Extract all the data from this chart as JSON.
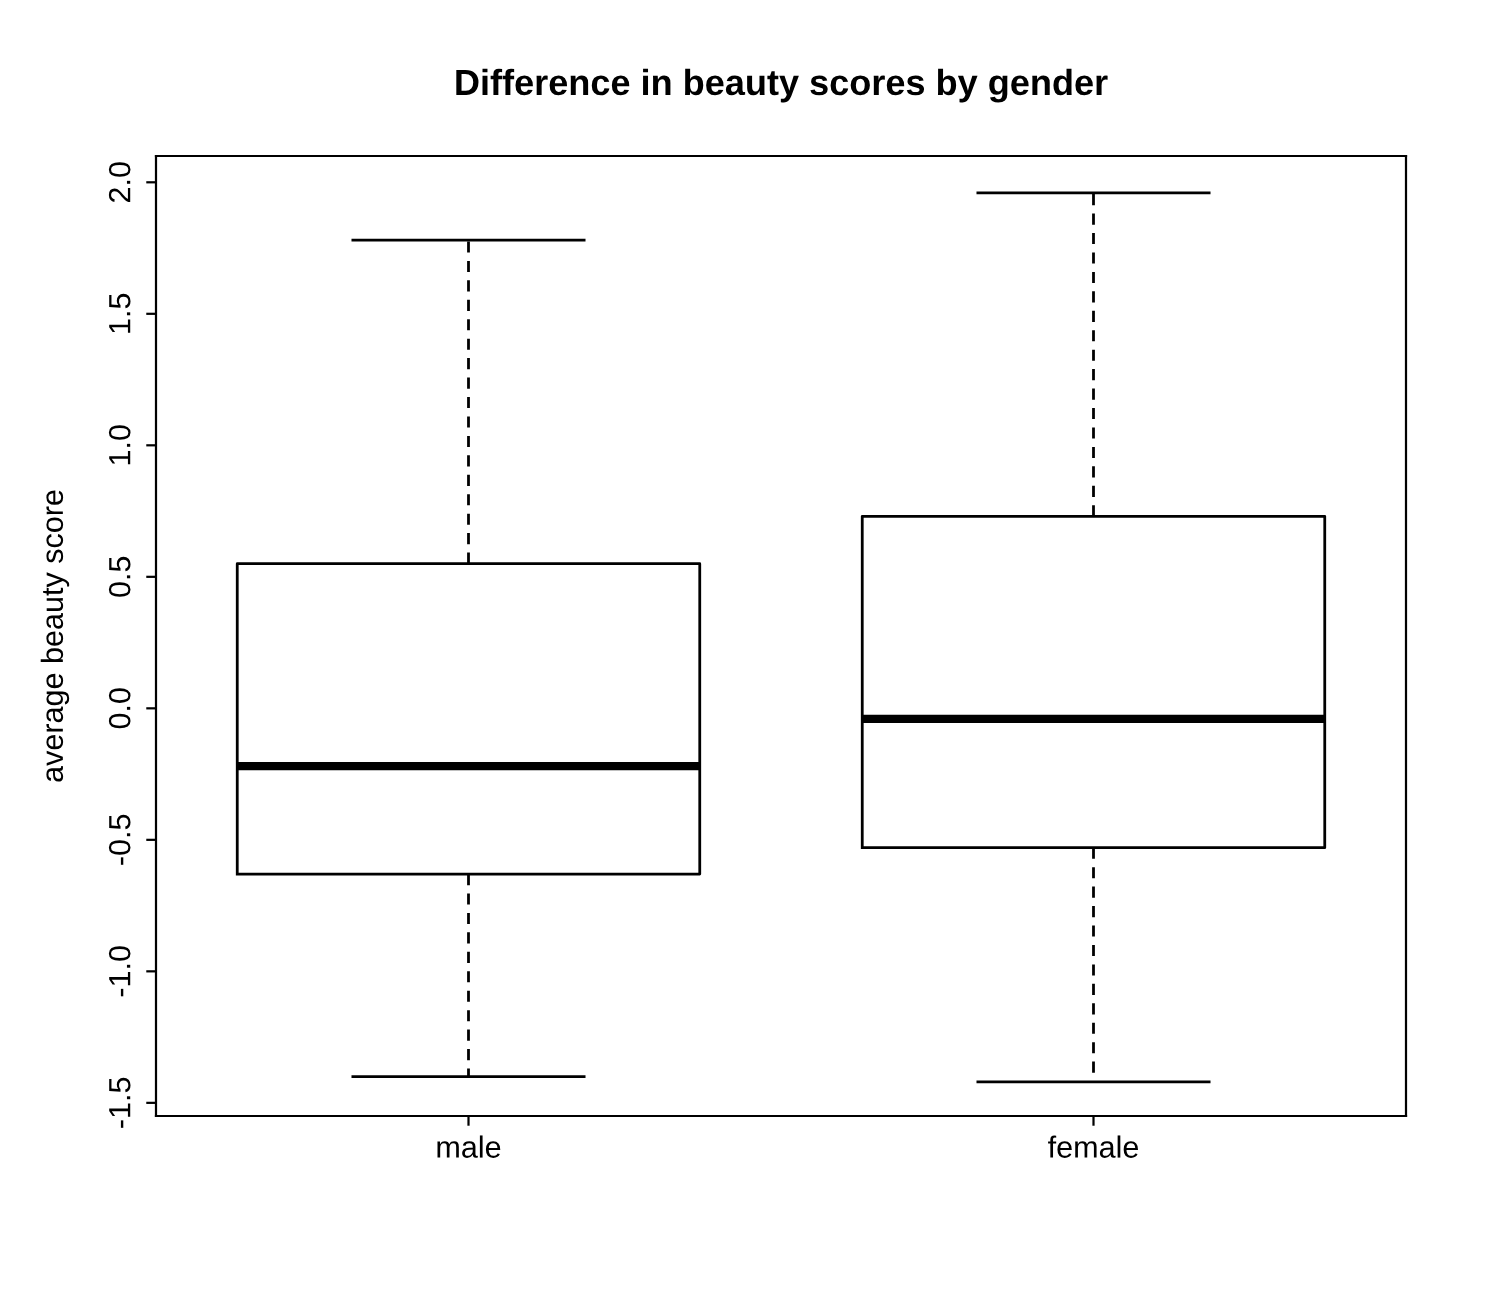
{
  "chart_data": {
    "type": "box",
    "title": "Difference in beauty scores by gender",
    "ylabel": "average beauty score",
    "categories": [
      "male",
      "female"
    ],
    "boxes": [
      {
        "low": -1.4,
        "q1": -0.63,
        "median": -0.22,
        "q3": 0.55,
        "high": 1.78
      },
      {
        "low": -1.42,
        "q1": -0.53,
        "median": -0.04,
        "q3": 0.73,
        "high": 1.96
      }
    ],
    "ylim": [
      -1.55,
      2.1
    ],
    "yticks": [
      -1.5,
      {
        "value": -1,
        "label": "-1.0"
      },
      {
        "value": -0.5,
        "label": "-0.5"
      },
      {
        "value": 0,
        "label": "0.0"
      },
      0.5,
      {
        "value": 1,
        "label": "1.0"
      },
      1.5,
      {
        "value": 2,
        "label": "2.0"
      }
    ],
    "grid": false,
    "legend": false
  }
}
